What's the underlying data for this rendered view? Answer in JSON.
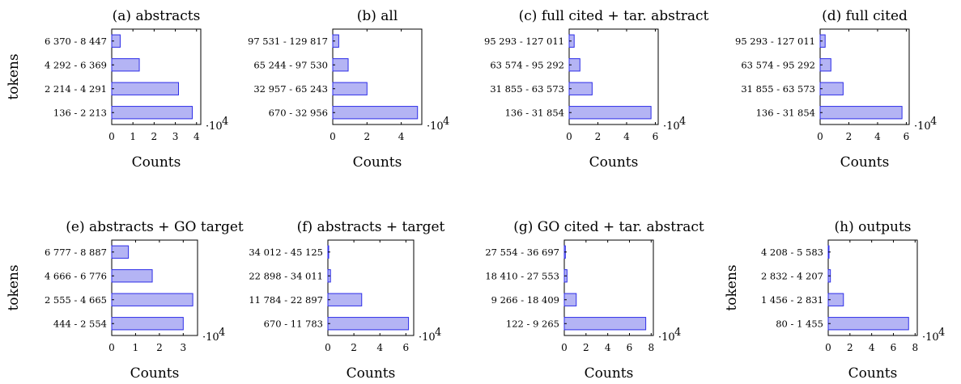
{
  "figure": {
    "y_axis_label": "tokens",
    "x_axis_label": "Counts",
    "multiplier_label": "·10",
    "multiplier_exponent": "4"
  },
  "chart_data": [
    {
      "type": "bar",
      "orientation": "horizontal",
      "title": "(a) abstracts",
      "xlabel": "Counts",
      "ylabel": "tokens",
      "categories": [
        "136 - 2 213",
        "2 214 - 4 291",
        "4 292 - 6 369",
        "6 370 - 8 447"
      ],
      "values": [
        3.8,
        3.15,
        1.3,
        0.4
      ],
      "xlim": [
        0,
        4.2
      ],
      "xticks": [
        0,
        1,
        2,
        3,
        4
      ],
      "x_multiplier": "10^4"
    },
    {
      "type": "bar",
      "orientation": "horizontal",
      "title": "(b) all",
      "xlabel": "Counts",
      "ylabel": "",
      "categories": [
        "670 - 32 956",
        "32 957 - 65 243",
        "65 244 - 97 530",
        "97 531 - 129 817"
      ],
      "values": [
        4.95,
        2.0,
        0.9,
        0.35
      ],
      "xlim": [
        0,
        5.2
      ],
      "xticks": [
        0,
        2,
        4
      ],
      "x_multiplier": "10^4"
    },
    {
      "type": "bar",
      "orientation": "horizontal",
      "title": "(c) full cited + tar. abstract",
      "xlabel": "Counts",
      "ylabel": "",
      "categories": [
        "136 - 31 854",
        "31 855 - 63 573",
        "63 574 - 95 292",
        "95 293 - 127 011"
      ],
      "values": [
        5.7,
        1.6,
        0.75,
        0.35
      ],
      "xlim": [
        0,
        6.2
      ],
      "xticks": [
        0,
        2,
        4,
        6
      ],
      "x_multiplier": "10^4"
    },
    {
      "type": "bar",
      "orientation": "horizontal",
      "title": "(d) full cited",
      "xlabel": "Counts",
      "ylabel": "",
      "categories": [
        "136 - 31 854",
        "31 855 - 63 573",
        "63 574 - 95 292",
        "95 293 - 127 011"
      ],
      "values": [
        5.7,
        1.6,
        0.75,
        0.35
      ],
      "xlim": [
        0,
        6.2
      ],
      "xticks": [
        0,
        2,
        4,
        6
      ],
      "x_multiplier": "10^4"
    },
    {
      "type": "bar",
      "orientation": "horizontal",
      "title": "(e) abstracts + GO target",
      "xlabel": "Counts",
      "ylabel": "tokens",
      "categories": [
        "444 - 2 554",
        "2 555 - 4 665",
        "4 666 - 6 776",
        "6 777 - 8 887"
      ],
      "values": [
        3.0,
        3.4,
        1.7,
        0.7
      ],
      "xlim": [
        0,
        3.6
      ],
      "xticks": [
        0,
        1,
        2,
        3
      ],
      "x_multiplier": "10^4"
    },
    {
      "type": "bar",
      "orientation": "horizontal",
      "title": "(f) abstracts + target",
      "xlabel": "Counts",
      "ylabel": "",
      "categories": [
        "670 - 11 783",
        "11 784 - 22 897",
        "22 898 - 34 011",
        "34 012 - 45 125"
      ],
      "values": [
        6.2,
        2.6,
        0.2,
        0.05
      ],
      "xlim": [
        0,
        6.6
      ],
      "xticks": [
        0,
        2,
        4,
        6
      ],
      "x_multiplier": "10^4"
    },
    {
      "type": "bar",
      "orientation": "horizontal",
      "title": "(g) GO cited + tar. abstract",
      "xlabel": "Counts",
      "ylabel": "",
      "categories": [
        "122 - 9 265",
        "9 266 - 18 409",
        "18 410 - 27 553",
        "27 554 - 36 697"
      ],
      "values": [
        7.5,
        1.1,
        0.25,
        0.1
      ],
      "xlim": [
        0,
        8.2
      ],
      "xticks": [
        0,
        2,
        4,
        6,
        8
      ],
      "x_multiplier": "10^4"
    },
    {
      "type": "bar",
      "orientation": "horizontal",
      "title": "(h) outputs",
      "xlabel": "Counts",
      "ylabel": "tokens",
      "categories": [
        "80 - 1 455",
        "1 456 - 2 831",
        "2 832 - 4 207",
        "4 208 - 5 583"
      ],
      "values": [
        7.4,
        1.4,
        0.2,
        0.05
      ],
      "xlim": [
        0,
        8.2
      ],
      "xticks": [
        0,
        2,
        4,
        6,
        8
      ],
      "x_multiplier": "10^4"
    }
  ]
}
